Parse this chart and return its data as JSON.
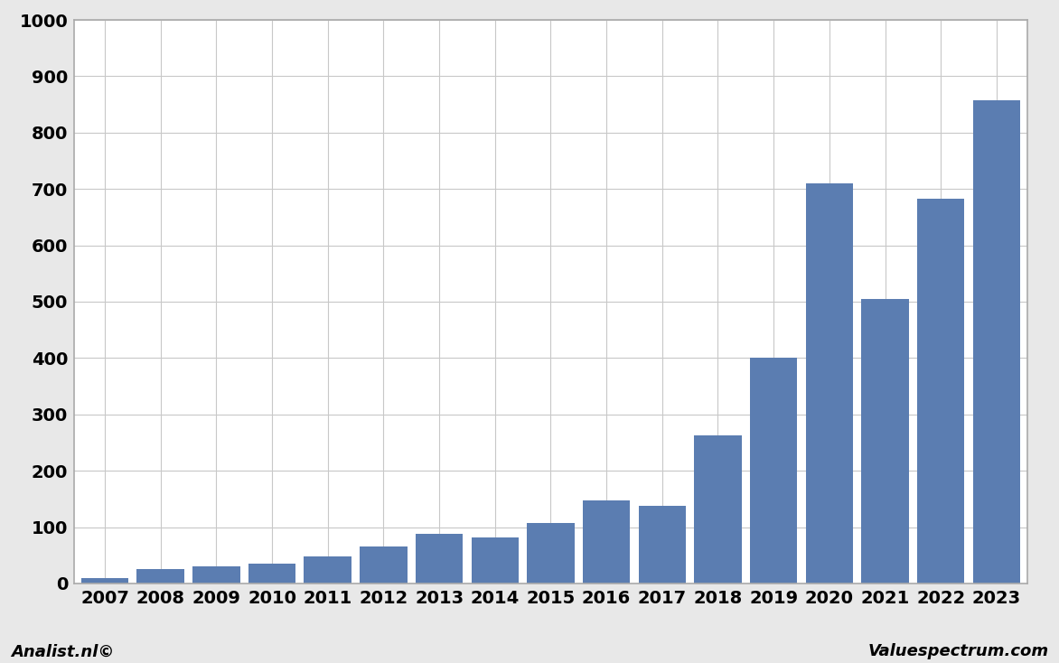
{
  "categories": [
    "2007",
    "2008",
    "2009",
    "2010",
    "2011",
    "2012",
    "2013",
    "2014",
    "2015",
    "2016",
    "2017",
    "2018",
    "2019",
    "2020",
    "2021",
    "2022",
    "2023"
  ],
  "values": [
    10,
    25,
    30,
    35,
    48,
    65,
    88,
    82,
    107,
    148,
    138,
    263,
    400,
    710,
    505,
    683,
    857
  ],
  "bar_color": "#5b7db1",
  "ylim": [
    0,
    1000
  ],
  "yticks": [
    0,
    100,
    200,
    300,
    400,
    500,
    600,
    700,
    800,
    900,
    1000
  ],
  "background_color": "#ffffff",
  "plot_bg_color": "#ffffff",
  "outer_bg_color": "#e8e8e8",
  "grid_color": "#c8c8c8",
  "footer_left": "Analist.nl©",
  "footer_right": "Valuespectrum.com",
  "border_color": "#aaaaaa",
  "tick_fontsize": 14,
  "footer_fontsize": 13
}
